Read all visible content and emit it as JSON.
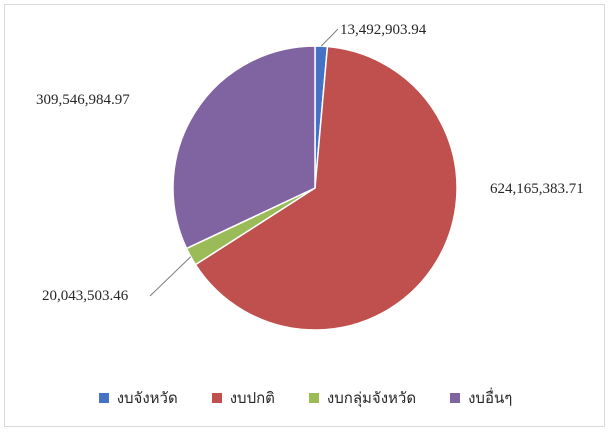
{
  "chart_data": {
    "type": "pie",
    "categories": [
      "งบจังหวัด",
      "งบปกติ",
      "งบกลุ่มจังหวัด",
      "งบอื่นๆ"
    ],
    "values": [
      13492903.94,
      624165383.71,
      20043503.46,
      309546984.97
    ],
    "labels": [
      "13,492,903.94",
      "624,165,383.71",
      "20,043,503.46",
      "309,546,984.97"
    ],
    "colors": [
      "#4472c4",
      "#c0504d",
      "#9bbb59",
      "#8064a2"
    ],
    "start_angle_deg": 0,
    "direction": "clockwise",
    "legend_position": "bottom",
    "title": ""
  }
}
